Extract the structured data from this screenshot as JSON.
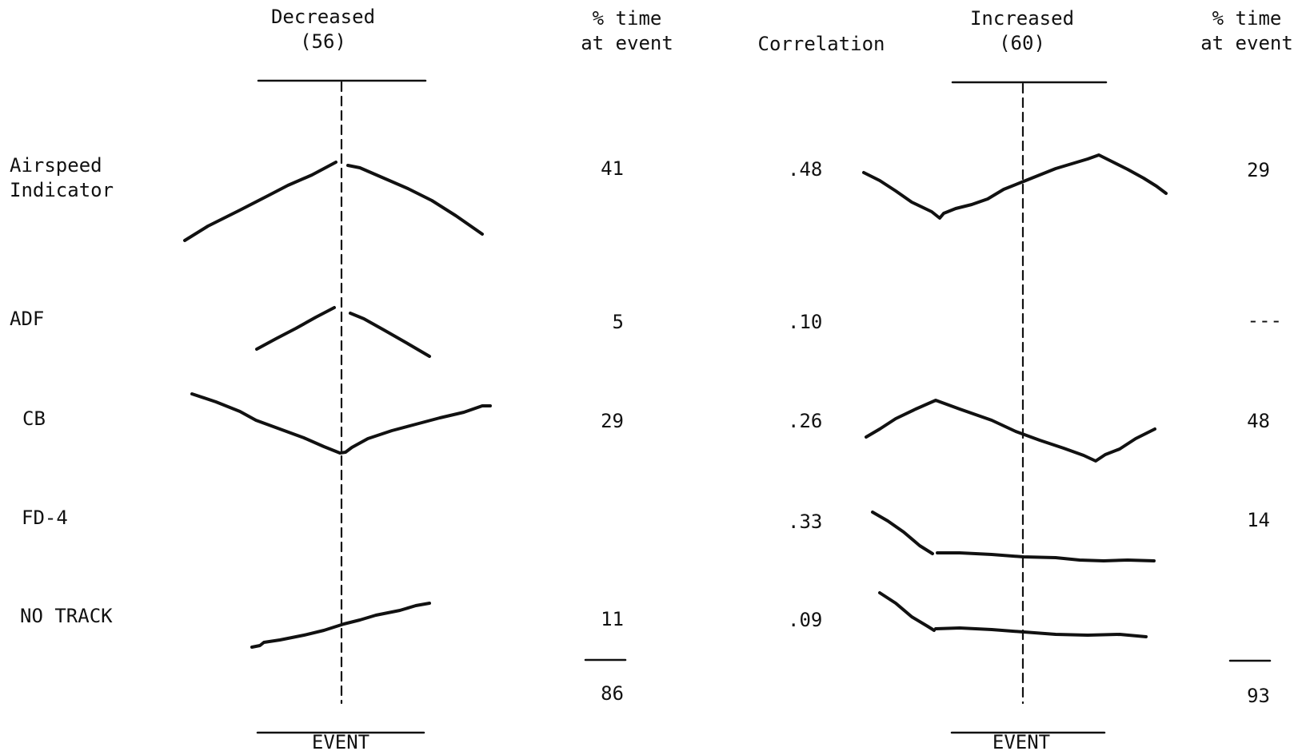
{
  "headers": {
    "decreased": "Decreased\n(56)",
    "pct_left": "% time\nat event",
    "correlation": "Correlation",
    "increased": "Increased\n(60)",
    "pct_right": "% time\nat event"
  },
  "instruments": [
    {
      "label": "Airspeed\nIndicator",
      "pct_decreased": "41",
      "correlation": ".48",
      "pct_increased": "29"
    },
    {
      "label": "ADF",
      "pct_decreased": "5",
      "correlation": ".10",
      "pct_increased": "---"
    },
    {
      "label": "CB",
      "pct_decreased": "29",
      "correlation": ".26",
      "pct_increased": "48"
    },
    {
      "label": "FD-4",
      "pct_decreased": "",
      "correlation": ".33",
      "pct_increased": "14"
    },
    {
      "label": "NO TRACK",
      "pct_decreased": "11",
      "correlation": ".09",
      "pct_increased": ""
    }
  ],
  "totals": {
    "decreased": "86",
    "increased": "93"
  },
  "event_labels": {
    "left": "EVENT",
    "right": "EVENT"
  }
}
